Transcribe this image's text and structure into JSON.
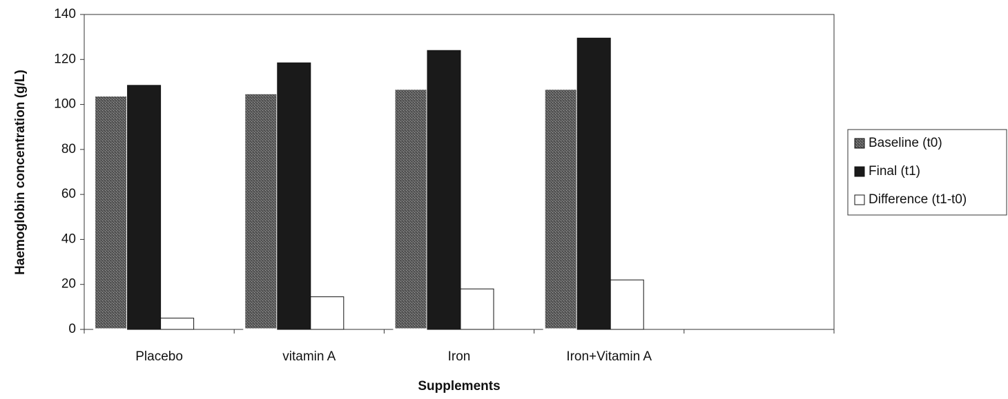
{
  "chart_data": {
    "type": "bar",
    "y_label": "Haemoglobin concentration (g/L)",
    "x_label": "Supplements",
    "categories": [
      "Placebo",
      "vitamin A",
      "Iron",
      "Iron+Vitamin A",
      null
    ],
    "series": [
      {
        "name": "Baseline  (t0)",
        "color": "#5a5a5a",
        "values": [
          104,
          105,
          107,
          107,
          null
        ]
      },
      {
        "name": "Final (t1)",
        "color": "#1a1a1a",
        "values": [
          108.5,
          118.5,
          124,
          129.5,
          null
        ]
      },
      {
        "name": "Difference (t1-t0)",
        "color": "#ffffff",
        "values": [
          5,
          14.5,
          18,
          22,
          null
        ]
      }
    ],
    "ylim": [
      0,
      140
    ],
    "yticks": [
      0,
      20,
      40,
      60,
      80,
      100,
      120,
      140
    ],
    "legend": "right"
  }
}
